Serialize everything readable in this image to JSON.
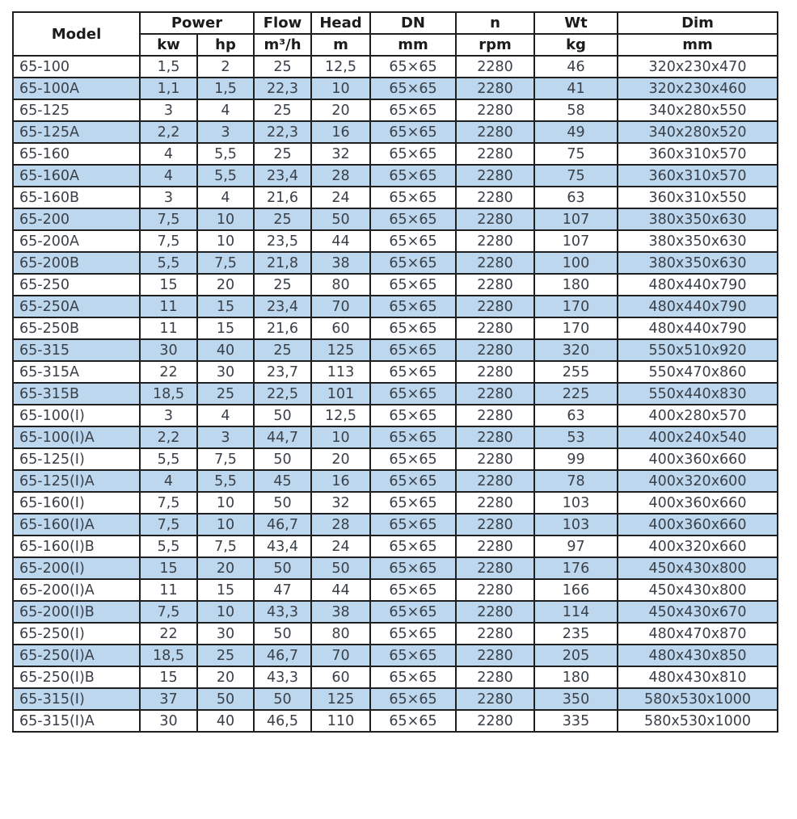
{
  "colors": {
    "stripe_blue": "#bdd7ee",
    "grid_border": "#1f1f1f",
    "text": "#3a4048",
    "background": "#ffffff"
  },
  "table": {
    "top_headers": {
      "model": "Model",
      "power": "Power",
      "flow": "Flow",
      "head": "Head",
      "dn": "DN",
      "n": "n",
      "wt": "Wt",
      "dim": "Dim"
    },
    "sub_headers": {
      "kw": "kw",
      "hp": "hp",
      "flow_unit": "m³/h",
      "head_unit": "m",
      "dn_unit": "mm",
      "n_unit": "rpm",
      "wt_unit": "kg",
      "dim_unit": "mm"
    },
    "rows": [
      [
        "65-100",
        "1,5",
        "2",
        "25",
        "12,5",
        "65×65",
        "2280",
        "46",
        "320x230x470"
      ],
      [
        "65-100A",
        "1,1",
        "1,5",
        "22,3",
        "10",
        "65×65",
        "2280",
        "41",
        "320x230x460"
      ],
      [
        "65-125",
        "3",
        "4",
        "25",
        "20",
        "65×65",
        "2280",
        "58",
        "340x280x550"
      ],
      [
        "65-125A",
        "2,2",
        "3",
        "22,3",
        "16",
        "65×65",
        "2280",
        "49",
        "340x280x520"
      ],
      [
        "65-160",
        "4",
        "5,5",
        "25",
        "32",
        "65×65",
        "2280",
        "75",
        "360x310x570"
      ],
      [
        "65-160A",
        "4",
        "5,5",
        "23,4",
        "28",
        "65×65",
        "2280",
        "75",
        "360x310x570"
      ],
      [
        "65-160B",
        "3",
        "4",
        "21,6",
        "24",
        "65×65",
        "2280",
        "63",
        "360x310x550"
      ],
      [
        "65-200",
        "7,5",
        "10",
        "25",
        "50",
        "65×65",
        "2280",
        "107",
        "380x350x630"
      ],
      [
        "65-200A",
        "7,5",
        "10",
        "23,5",
        "44",
        "65×65",
        "2280",
        "107",
        "380x350x630"
      ],
      [
        "65-200B",
        "5,5",
        "7,5",
        "21,8",
        "38",
        "65×65",
        "2280",
        "100",
        "380x350x630"
      ],
      [
        "65-250",
        "15",
        "20",
        "25",
        "80",
        "65×65",
        "2280",
        "180",
        "480x440x790"
      ],
      [
        "65-250A",
        "11",
        "15",
        "23,4",
        "70",
        "65×65",
        "2280",
        "170",
        "480x440x790"
      ],
      [
        "65-250B",
        "11",
        "15",
        "21,6",
        "60",
        "65×65",
        "2280",
        "170",
        "480x440x790"
      ],
      [
        "65-315",
        "30",
        "40",
        "25",
        "125",
        "65×65",
        "2280",
        "320",
        "550x510x920"
      ],
      [
        "65-315A",
        "22",
        "30",
        "23,7",
        "113",
        "65×65",
        "2280",
        "255",
        "550x470x860"
      ],
      [
        "65-315B",
        "18,5",
        "25",
        "22,5",
        "101",
        "65×65",
        "2280",
        "225",
        "550x440x830"
      ],
      [
        "65-100(I)",
        "3",
        "4",
        "50",
        "12,5",
        "65×65",
        "2280",
        "63",
        "400x280x570"
      ],
      [
        "65-100(I)A",
        "2,2",
        "3",
        "44,7",
        "10",
        "65×65",
        "2280",
        "53",
        "400x240x540"
      ],
      [
        "65-125(I)",
        "5,5",
        "7,5",
        "50",
        "20",
        "65×65",
        "2280",
        "99",
        "400x360x660"
      ],
      [
        "65-125(I)A",
        "4",
        "5,5",
        "45",
        "16",
        "65×65",
        "2280",
        "78",
        "400x320x600"
      ],
      [
        "65-160(I)",
        "7,5",
        "10",
        "50",
        "32",
        "65×65",
        "2280",
        "103",
        "400x360x660"
      ],
      [
        "65-160(I)A",
        "7,5",
        "10",
        "46,7",
        "28",
        "65×65",
        "2280",
        "103",
        "400x360x660"
      ],
      [
        "65-160(I)B",
        "5,5",
        "7,5",
        "43,4",
        "24",
        "65×65",
        "2280",
        "97",
        "400x320x660"
      ],
      [
        "65-200(I)",
        "15",
        "20",
        "50",
        "50",
        "65×65",
        "2280",
        "176",
        "450x430x800"
      ],
      [
        "65-200(I)A",
        "11",
        "15",
        "47",
        "44",
        "65×65",
        "2280",
        "166",
        "450x430x800"
      ],
      [
        "65-200(I)B",
        "7,5",
        "10",
        "43,3",
        "38",
        "65×65",
        "2280",
        "114",
        "450x430x670"
      ],
      [
        "65-250(I)",
        "22",
        "30",
        "50",
        "80",
        "65×65",
        "2280",
        "235",
        "480x470x870"
      ],
      [
        "65-250(I)A",
        "18,5",
        "25",
        "46,7",
        "70",
        "65×65",
        "2280",
        "205",
        "480x430x850"
      ],
      [
        "65-250(I)B",
        "15",
        "20",
        "43,3",
        "60",
        "65×65",
        "2280",
        "180",
        "480x430x810"
      ],
      [
        "65-315(I)",
        "37",
        "50",
        "50",
        "125",
        "65×65",
        "2280",
        "350",
        "580x530x1000"
      ],
      [
        "65-315(I)A",
        "30",
        "40",
        "46,5",
        "110",
        "65×65",
        "2280",
        "335",
        "580x530x1000"
      ]
    ]
  }
}
